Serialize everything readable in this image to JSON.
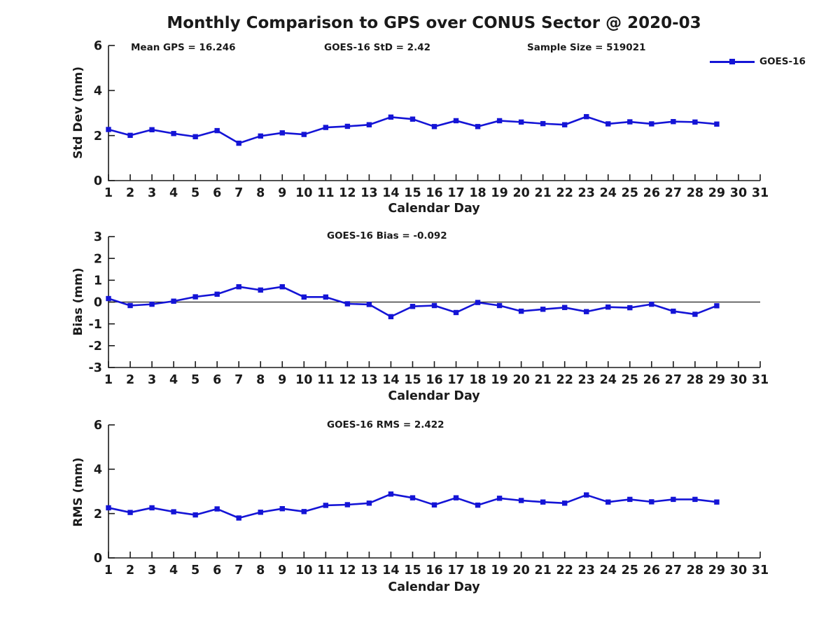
{
  "title": "Monthly Comparison to GPS over CONUS Sector @ 2020-03",
  "annotations": {
    "mean_gps": "Mean GPS = 16.246",
    "std": "GOES-16 StD = 2.42",
    "sample_size": "Sample Size = 519021",
    "bias": "GOES-16 Bias = -0.092",
    "rms": "GOES-16 RMS = 2.422"
  },
  "legend": {
    "label": "GOES-16"
  },
  "xlabel": "Calendar Day",
  "colors": {
    "line": "#1414d6",
    "axis": "#1a1a1a",
    "zero_line": "#222222"
  },
  "chart_data": [
    {
      "type": "line",
      "name": "std-dev",
      "series_name": "GOES-16",
      "ylabel": "Std Dev (mm)",
      "ylim": [
        0,
        6
      ],
      "yticks": [
        0,
        2,
        4,
        6
      ],
      "xlim": [
        1,
        31
      ],
      "xticks": [
        1,
        2,
        3,
        4,
        5,
        6,
        7,
        8,
        9,
        10,
        11,
        12,
        13,
        14,
        15,
        16,
        17,
        18,
        19,
        20,
        21,
        22,
        23,
        24,
        25,
        26,
        27,
        28,
        29,
        30,
        31
      ],
      "zero_line": false,
      "x": [
        1,
        2,
        3,
        4,
        5,
        6,
        7,
        8,
        9,
        10,
        11,
        12,
        13,
        14,
        15,
        16,
        17,
        18,
        19,
        20,
        21,
        22,
        23,
        24,
        25,
        26,
        27,
        28,
        29
      ],
      "values": [
        2.27,
        2.01,
        2.26,
        2.09,
        1.95,
        2.22,
        1.66,
        1.98,
        2.12,
        2.05,
        2.36,
        2.41,
        2.48,
        2.82,
        2.73,
        2.4,
        2.66,
        2.4,
        2.66,
        2.6,
        2.53,
        2.48,
        2.84,
        2.52,
        2.61,
        2.52,
        2.62,
        2.6,
        2.51
      ]
    },
    {
      "type": "line",
      "name": "bias",
      "series_name": "GOES-16",
      "ylabel": "Bias (mm)",
      "ylim": [
        -3,
        3
      ],
      "yticks": [
        -3,
        -2,
        -1,
        0,
        1,
        2,
        3
      ],
      "xlim": [
        1,
        31
      ],
      "xticks": [
        1,
        2,
        3,
        4,
        5,
        6,
        7,
        8,
        9,
        10,
        11,
        12,
        13,
        14,
        15,
        16,
        17,
        18,
        19,
        20,
        21,
        22,
        23,
        24,
        25,
        26,
        27,
        28,
        29,
        30,
        31
      ],
      "zero_line": true,
      "x": [
        1,
        2,
        3,
        4,
        5,
        6,
        7,
        8,
        9,
        10,
        11,
        12,
        13,
        14,
        15,
        16,
        17,
        18,
        19,
        20,
        21,
        22,
        23,
        24,
        25,
        26,
        27,
        28,
        29
      ],
      "values": [
        0.16,
        -0.16,
        -0.1,
        0.04,
        0.24,
        0.36,
        0.7,
        0.55,
        0.7,
        0.23,
        0.23,
        -0.08,
        -0.11,
        -0.67,
        -0.2,
        -0.16,
        -0.48,
        -0.02,
        -0.16,
        -0.42,
        -0.33,
        -0.25,
        -0.44,
        -0.23,
        -0.26,
        -0.1,
        -0.42,
        -0.56,
        -0.17
      ]
    },
    {
      "type": "line",
      "name": "rms",
      "series_name": "GOES-16",
      "ylabel": "RMS (mm)",
      "ylim": [
        0,
        6
      ],
      "yticks": [
        0,
        2,
        4,
        6
      ],
      "xlim": [
        1,
        31
      ],
      "xticks": [
        1,
        2,
        3,
        4,
        5,
        6,
        7,
        8,
        9,
        10,
        11,
        12,
        13,
        14,
        15,
        16,
        17,
        18,
        19,
        20,
        21,
        22,
        23,
        24,
        25,
        26,
        27,
        28,
        29,
        30,
        31
      ],
      "zero_line": false,
      "x": [
        1,
        2,
        3,
        4,
        5,
        6,
        7,
        8,
        9,
        10,
        11,
        12,
        13,
        14,
        15,
        16,
        17,
        18,
        19,
        20,
        21,
        22,
        23,
        24,
        25,
        26,
        27,
        28,
        29
      ],
      "values": [
        2.26,
        2.05,
        2.26,
        2.08,
        1.94,
        2.21,
        1.8,
        2.06,
        2.22,
        2.09,
        2.37,
        2.4,
        2.47,
        2.88,
        2.71,
        2.39,
        2.71,
        2.38,
        2.69,
        2.59,
        2.52,
        2.47,
        2.84,
        2.52,
        2.64,
        2.53,
        2.64,
        2.64,
        2.52
      ]
    }
  ]
}
